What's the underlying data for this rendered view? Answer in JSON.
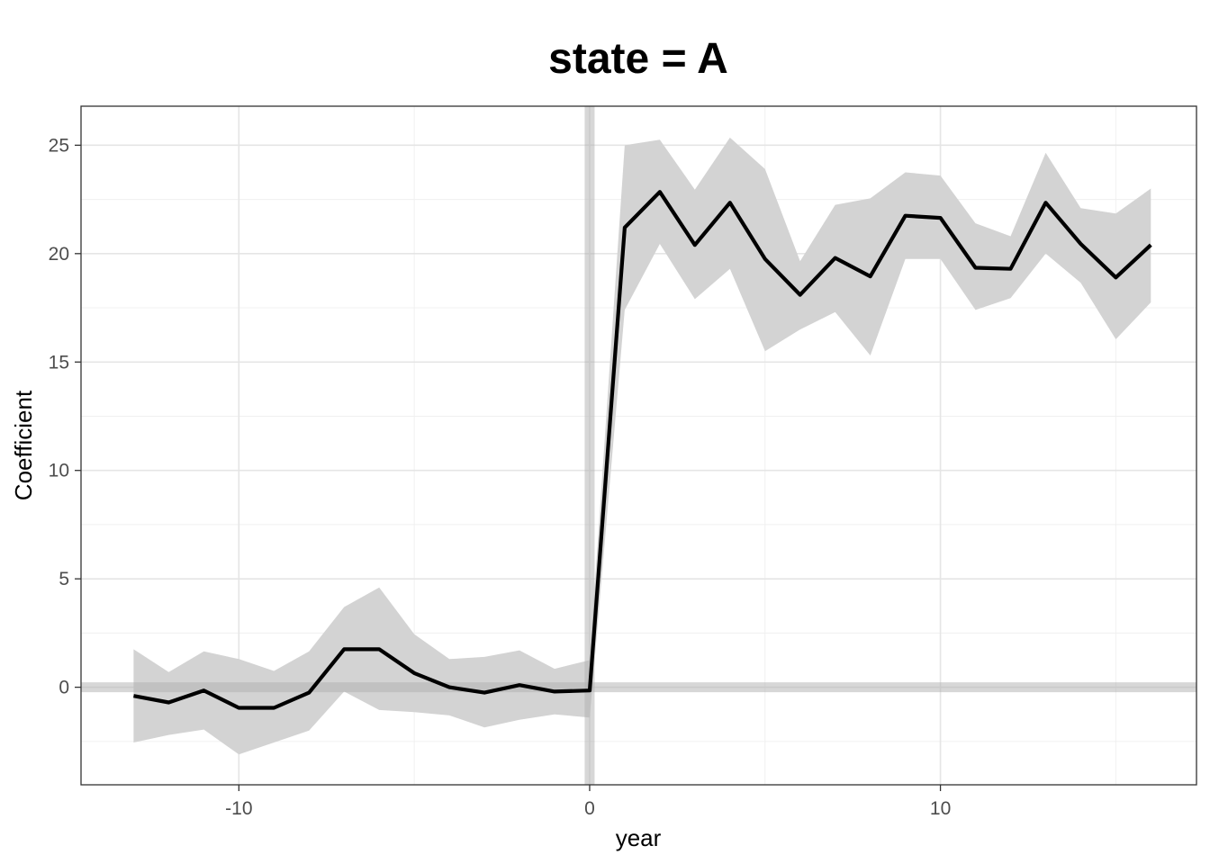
{
  "chart_data": {
    "type": "line",
    "title": "state = A",
    "xlabel": "year",
    "ylabel": "Coefficient",
    "xlim": [
      -14.5,
      17.3
    ],
    "ylim": [
      -4.5,
      26.8
    ],
    "x_ticks": [
      -10,
      0,
      10
    ],
    "y_ticks": [
      0,
      5,
      10,
      15,
      20,
      25
    ],
    "x_tick_labels": [
      "-10",
      "0",
      "10"
    ],
    "y_tick_labels": [
      "0",
      "5",
      "10",
      "15",
      "20",
      "25"
    ],
    "grid": true,
    "reference_lines": {
      "vertical_x": 0,
      "horizontal_y": 0
    },
    "series": [
      {
        "x": [
          -13,
          -12,
          -11,
          -10,
          -9,
          -8,
          -7,
          -6,
          -5,
          -4,
          -3,
          -2,
          -1,
          0,
          1,
          2,
          3,
          4,
          5,
          6,
          7,
          8,
          9,
          10,
          11,
          12,
          13,
          14,
          15,
          16
        ],
        "y": [
          -0.4,
          -0.7,
          -0.15,
          -0.95,
          -0.95,
          -0.25,
          1.75,
          1.75,
          0.65,
          0.0,
          -0.25,
          0.1,
          -0.2,
          -0.15,
          21.2,
          22.85,
          20.4,
          22.35,
          19.75,
          18.1,
          19.8,
          18.95,
          21.75,
          21.65,
          19.35,
          19.3,
          22.35,
          20.45,
          18.9,
          20.4
        ],
        "lower": [
          -2.55,
          -2.2,
          -1.95,
          -3.1,
          -2.55,
          -2.0,
          -0.2,
          -1.05,
          -1.15,
          -1.3,
          -1.85,
          -1.5,
          -1.25,
          -1.4,
          17.4,
          20.45,
          17.9,
          19.3,
          15.5,
          16.5,
          17.3,
          15.3,
          19.75,
          19.75,
          17.4,
          17.95,
          20.0,
          18.65,
          16.05,
          17.75
        ],
        "upper": [
          1.75,
          0.7,
          1.65,
          1.3,
          0.75,
          1.65,
          3.7,
          4.6,
          2.45,
          1.3,
          1.4,
          1.7,
          0.85,
          1.25,
          25.0,
          25.25,
          22.95,
          25.35,
          23.9,
          19.65,
          22.25,
          22.55,
          23.75,
          23.6,
          21.4,
          20.8,
          24.65,
          22.1,
          21.85,
          23.0
        ],
        "color": "#000000",
        "band_color": "#d3d3d3"
      }
    ]
  }
}
